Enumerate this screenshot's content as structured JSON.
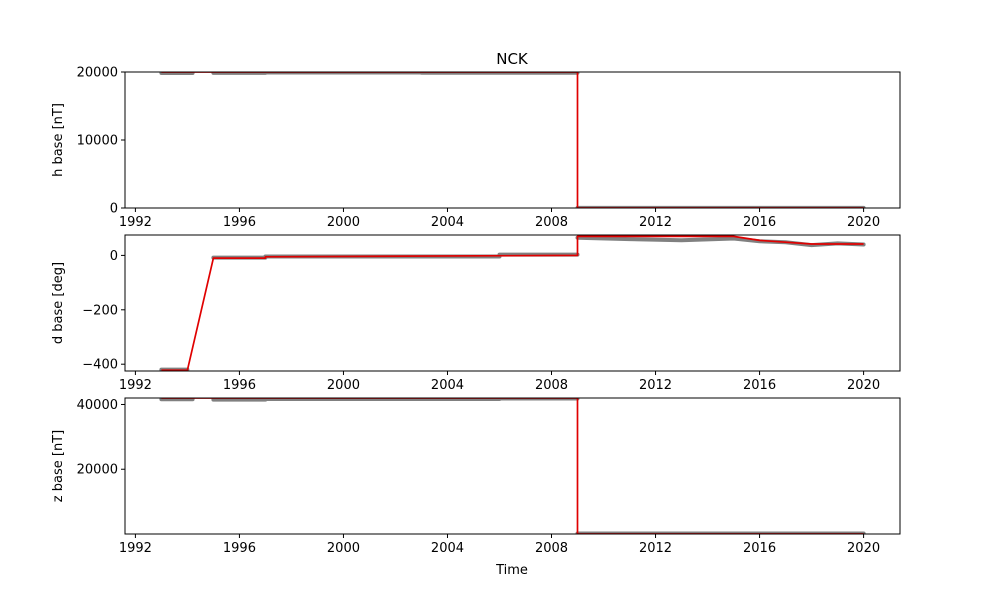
{
  "chart_data": {
    "type": "line",
    "title": "NCK",
    "xlabel": "Time",
    "xlim": [
      1991.6,
      2021.4
    ],
    "xticks": [
      1992,
      1996,
      2000,
      2004,
      2008,
      2012,
      2016,
      2020
    ],
    "colors": {
      "raw": "#808080",
      "fit": "#e00000"
    },
    "panels": [
      {
        "id": "h",
        "ylabel": "h base [nT]",
        "ylim": [
          0,
          20000
        ],
        "yticks": [
          0,
          10000,
          20000
        ],
        "series": [
          {
            "style": "raw",
            "segments": [
              [
                [
                  1993.0,
                  19850
                ],
                [
                  1994.2,
                  19850
                ]
              ],
              [
                [
                  1995.0,
                  19870
                ],
                [
                  1997.0,
                  19870
                ]
              ],
              [
                [
                  1997.0,
                  19920
                ],
                [
                  2003.0,
                  19920
                ]
              ],
              [
                [
                  2003.0,
                  19880
                ],
                [
                  2009.0,
                  19900
                ]
              ],
              [
                [
                  2009.0,
                  20
                ],
                [
                  2020.0,
                  20
                ]
              ]
            ]
          },
          {
            "style": "fit",
            "segments": [
              [
                [
                  1993.0,
                  20000
                ],
                [
                  2009.0,
                  20000
                ],
                [
                  2009.0,
                  0
                ],
                [
                  2020.0,
                  0
                ]
              ]
            ]
          }
        ]
      },
      {
        "id": "d",
        "ylabel": "d base [deg]",
        "ylim": [
          -425,
          75
        ],
        "yticks": [
          -400,
          -200,
          0
        ],
        "series": [
          {
            "style": "raw",
            "segments": [
              [
                [
                  1993.0,
                  -420
                ],
                [
                  1994.0,
                  -420
                ]
              ],
              [
                [
                  1995.0,
                  -8
                ],
                [
                  1997.0,
                  -8
                ]
              ],
              [
                [
                  1997.0,
                  -4
                ],
                [
                  2006.0,
                  -4
                ]
              ],
              [
                [
                  2006.0,
                  3
                ],
                [
                  2009.0,
                  3
                ]
              ],
              [
                [
                  2009.0,
                  65
                ],
                [
                  2011.0,
                  60
                ],
                [
                  2013.0,
                  56
                ],
                [
                  2015.0,
                  62
                ],
                [
                  2016.0,
                  52
                ],
                [
                  2017.0,
                  48
                ],
                [
                  2018.0,
                  38
                ],
                [
                  2019.0,
                  44
                ],
                [
                  2020.0,
                  40
                ]
              ]
            ]
          },
          {
            "style": "fit",
            "segments": [
              [
                [
                  1993.0,
                  -422
                ],
                [
                  1994.0,
                  -422
                ],
                [
                  1995.0,
                  -10
                ],
                [
                  1997.0,
                  -10
                ],
                [
                  1997.0,
                  -5
                ],
                [
                  2009.0,
                  0
                ],
                [
                  2009.0,
                  70
                ],
                [
                  2015.0,
                  70
                ],
                [
                  2016.0,
                  55
                ],
                [
                  2018.0,
                  42
                ],
                [
                  2020.0,
                  42
                ]
              ]
            ]
          }
        ]
      },
      {
        "id": "z",
        "ylabel": "z base [nT]",
        "ylim": [
          0,
          42000
        ],
        "yticks": [
          20000,
          40000
        ],
        "series": [
          {
            "style": "raw",
            "segments": [
              [
                [
                  1993.0,
                  41600
                ],
                [
                  1994.2,
                  41600
                ]
              ],
              [
                [
                  1995.0,
                  41500
                ],
                [
                  1997.0,
                  41500
                ]
              ],
              [
                [
                  1997.0,
                  41700
                ],
                [
                  2006.0,
                  41700
                ]
              ],
              [
                [
                  2006.0,
                  41850
                ],
                [
                  2009.0,
                  41850
                ]
              ],
              [
                [
                  2009.0,
                  150
                ],
                [
                  2020.0,
                  150
                ]
              ]
            ]
          },
          {
            "style": "fit",
            "segments": [
              [
                [
                  1993.0,
                  42000
                ],
                [
                  2009.0,
                  42000
                ],
                [
                  2009.0,
                  0
                ],
                [
                  2020.0,
                  0
                ]
              ]
            ]
          }
        ]
      }
    ]
  }
}
